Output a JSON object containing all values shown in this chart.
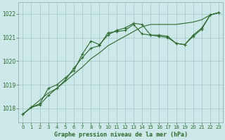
{
  "background_color": "#cce8e8",
  "grid_color": "#aacccc",
  "line_color": "#2d6a2d",
  "title": "Graphe pression niveau de la mer (hPa)",
  "xlim": [
    -0.5,
    23.5
  ],
  "ylim": [
    1017.4,
    1022.5
  ],
  "yticks": [
    1018,
    1019,
    1020,
    1021,
    1022
  ],
  "xticks": [
    0,
    1,
    2,
    3,
    4,
    5,
    6,
    7,
    8,
    9,
    10,
    11,
    12,
    13,
    14,
    15,
    16,
    17,
    18,
    19,
    20,
    21,
    22,
    23
  ],
  "series1_x": [
    0,
    1,
    2,
    3,
    4,
    5,
    6,
    7,
    8,
    9,
    10,
    11,
    12,
    13,
    14,
    15,
    16,
    17,
    18,
    19,
    20,
    21,
    22,
    23
  ],
  "series1_y": [
    1017.75,
    1018.05,
    1018.35,
    1018.65,
    1018.85,
    1019.15,
    1019.45,
    1019.75,
    1020.1,
    1020.35,
    1020.65,
    1020.85,
    1021.05,
    1021.25,
    1021.45,
    1021.55,
    1021.55,
    1021.55,
    1021.55,
    1021.6,
    1021.65,
    1021.75,
    1021.95,
    1022.05
  ],
  "series2_x": [
    0,
    1,
    2,
    3,
    4,
    5,
    6,
    7,
    8,
    9,
    10,
    11,
    12,
    13,
    14,
    15,
    16,
    17,
    18,
    19,
    20,
    21,
    22,
    23
  ],
  "series2_y": [
    1017.75,
    1018.05,
    1018.15,
    1018.55,
    1018.85,
    1019.2,
    1019.7,
    1020.15,
    1020.55,
    1020.65,
    1021.2,
    1021.25,
    1021.3,
    1021.55,
    1021.15,
    1021.1,
    1021.05,
    1021.0,
    1020.75,
    1020.7,
    1021.05,
    1021.35,
    1021.95,
    1022.05
  ],
  "series3_x": [
    0,
    1,
    2,
    3,
    4,
    5,
    6,
    7,
    8,
    9,
    10,
    11,
    12,
    13,
    14,
    15,
    16,
    17,
    18,
    19,
    20,
    21,
    22,
    23
  ],
  "series3_y": [
    1017.75,
    1018.05,
    1018.2,
    1018.85,
    1019.0,
    1019.3,
    1019.6,
    1020.3,
    1020.85,
    1020.7,
    1021.1,
    1021.3,
    1021.4,
    1021.6,
    1021.55,
    1021.1,
    1021.1,
    1021.05,
    1020.75,
    1020.7,
    1021.1,
    1021.4,
    1021.95,
    1022.05
  ]
}
